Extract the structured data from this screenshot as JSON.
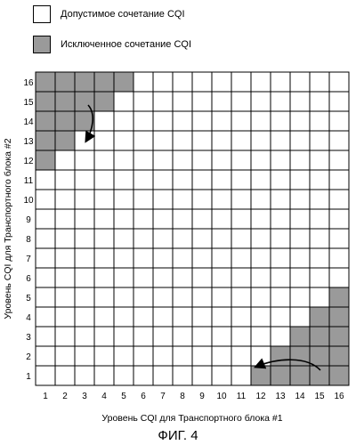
{
  "legend": {
    "allowed": {
      "label": "Допустимое сочетание CQI",
      "color": "#ffffff"
    },
    "excluded": {
      "label": "Исключенное сочетание CQI",
      "color": "#9a9a9a"
    }
  },
  "grid": {
    "size": 16,
    "x_axis_label": "Уровень CQI для Транспортного блока #1",
    "y_axis_label": "Уровень CQI для Транспортного блока #2",
    "x_ticks": [
      "1",
      "2",
      "3",
      "4",
      "5",
      "6",
      "7",
      "8",
      "9",
      "10",
      "11",
      "12",
      "13",
      "14",
      "15",
      "16"
    ],
    "y_ticks": [
      "1",
      "2",
      "3",
      "4",
      "5",
      "6",
      "7",
      "8",
      "9",
      "10",
      "11",
      "12",
      "13",
      "14",
      "15",
      "16"
    ],
    "excluded_cells": [
      [
        1,
        16
      ],
      [
        2,
        16
      ],
      [
        3,
        16
      ],
      [
        4,
        16
      ],
      [
        5,
        16
      ],
      [
        1,
        15
      ],
      [
        2,
        15
      ],
      [
        3,
        15
      ],
      [
        4,
        15
      ],
      [
        1,
        14
      ],
      [
        2,
        14
      ],
      [
        3,
        14
      ],
      [
        1,
        13
      ],
      [
        2,
        13
      ],
      [
        1,
        12
      ],
      [
        16,
        5
      ],
      [
        15,
        4
      ],
      [
        16,
        4
      ],
      [
        14,
        3
      ],
      [
        15,
        3
      ],
      [
        16,
        3
      ],
      [
        13,
        2
      ],
      [
        14,
        2
      ],
      [
        15,
        2
      ],
      [
        16,
        2
      ],
      [
        12,
        1
      ],
      [
        13,
        1
      ],
      [
        14,
        1
      ],
      [
        15,
        1
      ],
      [
        16,
        1
      ]
    ],
    "arrows": [
      {
        "from": "top-left",
        "direction": "clockwise-down"
      },
      {
        "from": "bottom-right",
        "direction": "leftward"
      }
    ]
  },
  "caption": "ФИГ. 4"
}
